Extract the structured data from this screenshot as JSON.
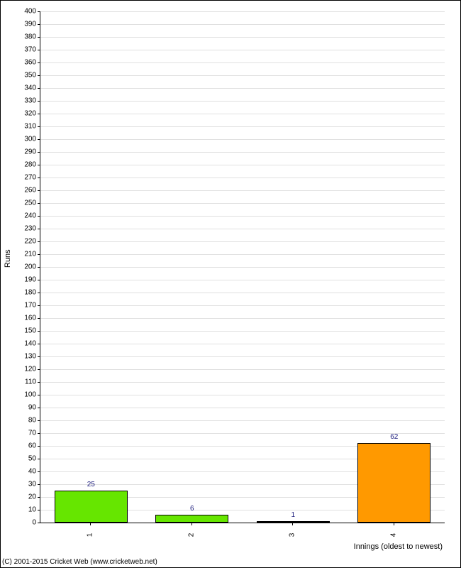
{
  "chart": {
    "type": "bar",
    "ylabel": "Runs",
    "xlabel": "Innings (oldest to newest)",
    "ylim": [
      0,
      400
    ],
    "ytick_step": 10,
    "categories": [
      "1",
      "2",
      "3",
      "4"
    ],
    "values": [
      25,
      6,
      1,
      62
    ],
    "bar_colors": [
      "#66e600",
      "#66e600",
      "#66e600",
      "#ff9900"
    ],
    "value_label_color": "#20207f",
    "grid_color": "#e0e0e0",
    "axis_color": "#000000",
    "background_color": "#ffffff",
    "label_fontsize": 10,
    "axis_label_fontsize": 11
  },
  "copyright": "(C) 2001-2015 Cricket Web (www.cricketweb.net)"
}
